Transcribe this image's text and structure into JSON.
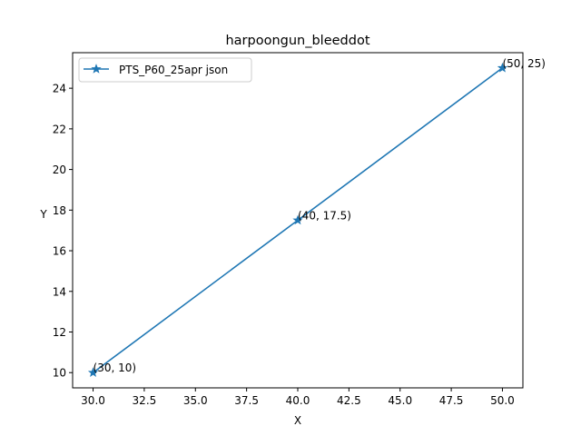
{
  "chart_data": {
    "type": "line",
    "title": "harpoongun_bleeddot",
    "xlabel": "X",
    "ylabel": "Y",
    "xlim": [
      29.0,
      51.0
    ],
    "ylim": [
      9.25,
      25.75
    ],
    "x_ticks": [
      30.0,
      32.5,
      35.0,
      37.5,
      40.0,
      42.5,
      45.0,
      47.5,
      50.0
    ],
    "x_tick_labels": [
      "30.0",
      "32.5",
      "35.0",
      "37.5",
      "40.0",
      "42.5",
      "45.0",
      "47.5",
      "50.0"
    ],
    "y_ticks": [
      10,
      12,
      14,
      16,
      18,
      20,
      22,
      24
    ],
    "y_tick_labels": [
      "10",
      "12",
      "14",
      "16",
      "18",
      "20",
      "22",
      "24"
    ],
    "grid": false,
    "legend_position": "upper-left",
    "series": [
      {
        "name": "PTS_P60_25apr json",
        "color": "#1f77b4",
        "marker": "star",
        "x": [
          30,
          40,
          50
        ],
        "y": [
          10,
          17.5,
          25
        ]
      }
    ],
    "annotations": [
      "(30, 10)",
      "(40, 17.5)",
      "(50, 25)"
    ]
  }
}
